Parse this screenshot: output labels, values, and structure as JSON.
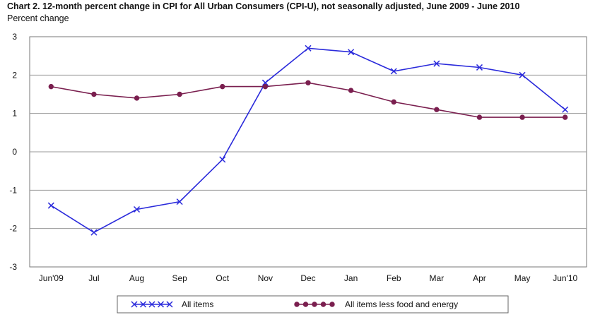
{
  "chart_data": {
    "type": "line",
    "title": "Chart 2. 12-month percent change in CPI for All Urban Consumers (CPI-U), not seasonally adjusted, June 2009 - June 2010",
    "ylabel": "Percent change",
    "xlabel": "",
    "categories": [
      "Jun'09",
      "Jul",
      "Aug",
      "Sep",
      "Oct",
      "Nov",
      "Dec",
      "Jan",
      "Feb",
      "Mar",
      "Apr",
      "May",
      "Jun'10"
    ],
    "ylim": [
      -3,
      3
    ],
    "yticks": [
      3,
      2,
      1,
      0,
      -1,
      -2,
      -3
    ],
    "grid": true,
    "legend_position": "bottom",
    "series": [
      {
        "name": "All items",
        "color": "#2a2adb",
        "marker": "x",
        "values": [
          -1.4,
          -2.1,
          -1.5,
          -1.3,
          -0.2,
          1.8,
          2.7,
          2.6,
          2.1,
          2.3,
          2.2,
          2.0,
          1.1
        ]
      },
      {
        "name": "All items less food and energy",
        "color": "#7a1f4f",
        "marker": "circle",
        "values": [
          1.7,
          1.5,
          1.4,
          1.5,
          1.7,
          1.7,
          1.8,
          1.6,
          1.3,
          1.1,
          0.9,
          0.9,
          0.9
        ]
      }
    ]
  }
}
